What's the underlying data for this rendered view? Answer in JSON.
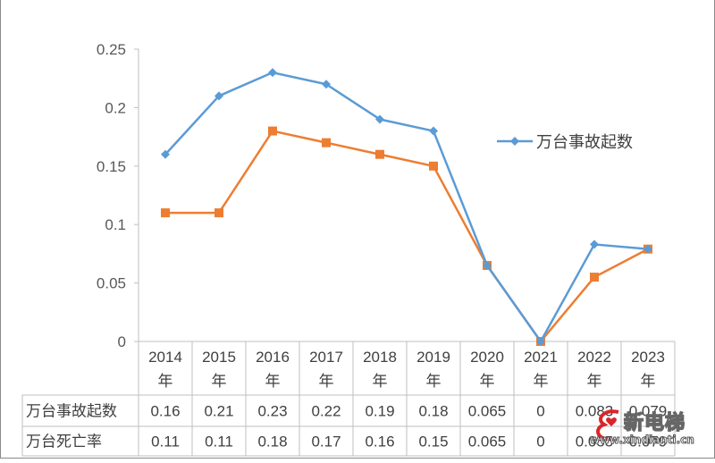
{
  "chart_data": {
    "type": "line",
    "title": "",
    "xlabel": "",
    "ylabel": "",
    "ylim": [
      0,
      0.25
    ],
    "yticks": [
      "0",
      "0.05",
      "0.1",
      "0.15",
      "0.2",
      "0.25"
    ],
    "grid": false,
    "legend_position": "right",
    "categories": [
      "2014年",
      "2015年",
      "2016年",
      "2017年",
      "2018年",
      "2019年",
      "2020年",
      "2021年",
      "2022年",
      "2023年"
    ],
    "series": [
      {
        "name": "万台事故起数",
        "color": "#5B9BD5",
        "marker": "diamond",
        "values": [
          0.16,
          0.21,
          0.23,
          0.22,
          0.19,
          0.18,
          0.065,
          0,
          0.083,
          0.079
        ]
      },
      {
        "name": "万台死亡率",
        "color": "#ED7D31",
        "marker": "square",
        "values": [
          0.11,
          0.11,
          0.18,
          0.17,
          0.16,
          0.15,
          0.065,
          0,
          0.055,
          0.079
        ]
      }
    ],
    "data_table": {
      "row_labels": [
        "万台事故起数",
        "万台死亡率"
      ],
      "cells": [
        [
          "0.16",
          "0.21",
          "0.23",
          "0.22",
          "0.19",
          "0.18",
          "0.065",
          "0",
          "0.083",
          "0.079"
        ],
        [
          "0.11",
          "0.11",
          "0.18",
          "0.17",
          "0.16",
          "0.15",
          "0.065",
          "0",
          "0.055",
          "0.079"
        ]
      ]
    }
  },
  "legend": {
    "label": "万台事故起数"
  },
  "watermark": {
    "title": "新电梯",
    "url": "www.xindianti.cn"
  }
}
